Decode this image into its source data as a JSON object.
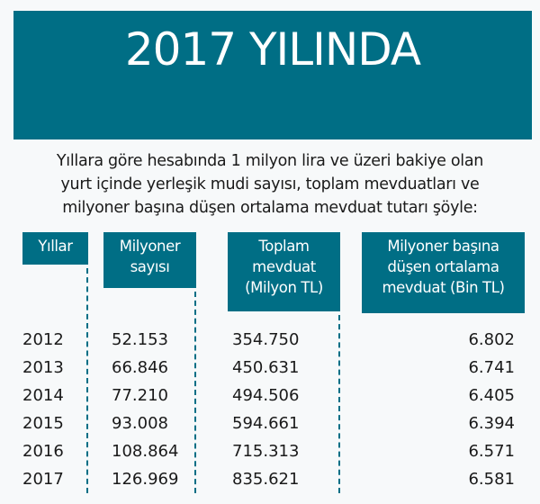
{
  "title": "2017 YILINDA",
  "intro": [
    "Yıllara göre hesabında 1 milyon lira ve üzeri bakiye olan",
    "yurt içinde yerleşik mudi sayısı, toplam mevduatları ve",
    "milyoner başına düşen ortalama mevduat tutarı şöyle:"
  ],
  "accent_color": "#006e85",
  "table": {
    "headers": [
      [
        "Yıllar"
      ],
      [
        "Milyoner",
        "sayısı"
      ],
      [
        "Toplam",
        "mevduat",
        "(Milyon TL)"
      ],
      [
        "Milyoner başına",
        "düşen ortalama",
        "mevduat (Bin TL)"
      ]
    ],
    "rows": [
      [
        "2012",
        "52.153",
        "354.750",
        "6.802"
      ],
      [
        "2013",
        "66.846",
        "450.631",
        "6.741"
      ],
      [
        "2014",
        "77.210",
        "494.506",
        "6.405"
      ],
      [
        "2015",
        "93.008",
        "594.661",
        "6.394"
      ],
      [
        "2016",
        "108.864",
        "715.313",
        "6.571"
      ],
      [
        "2017",
        "126.969",
        "835.621",
        "6.581"
      ]
    ]
  }
}
